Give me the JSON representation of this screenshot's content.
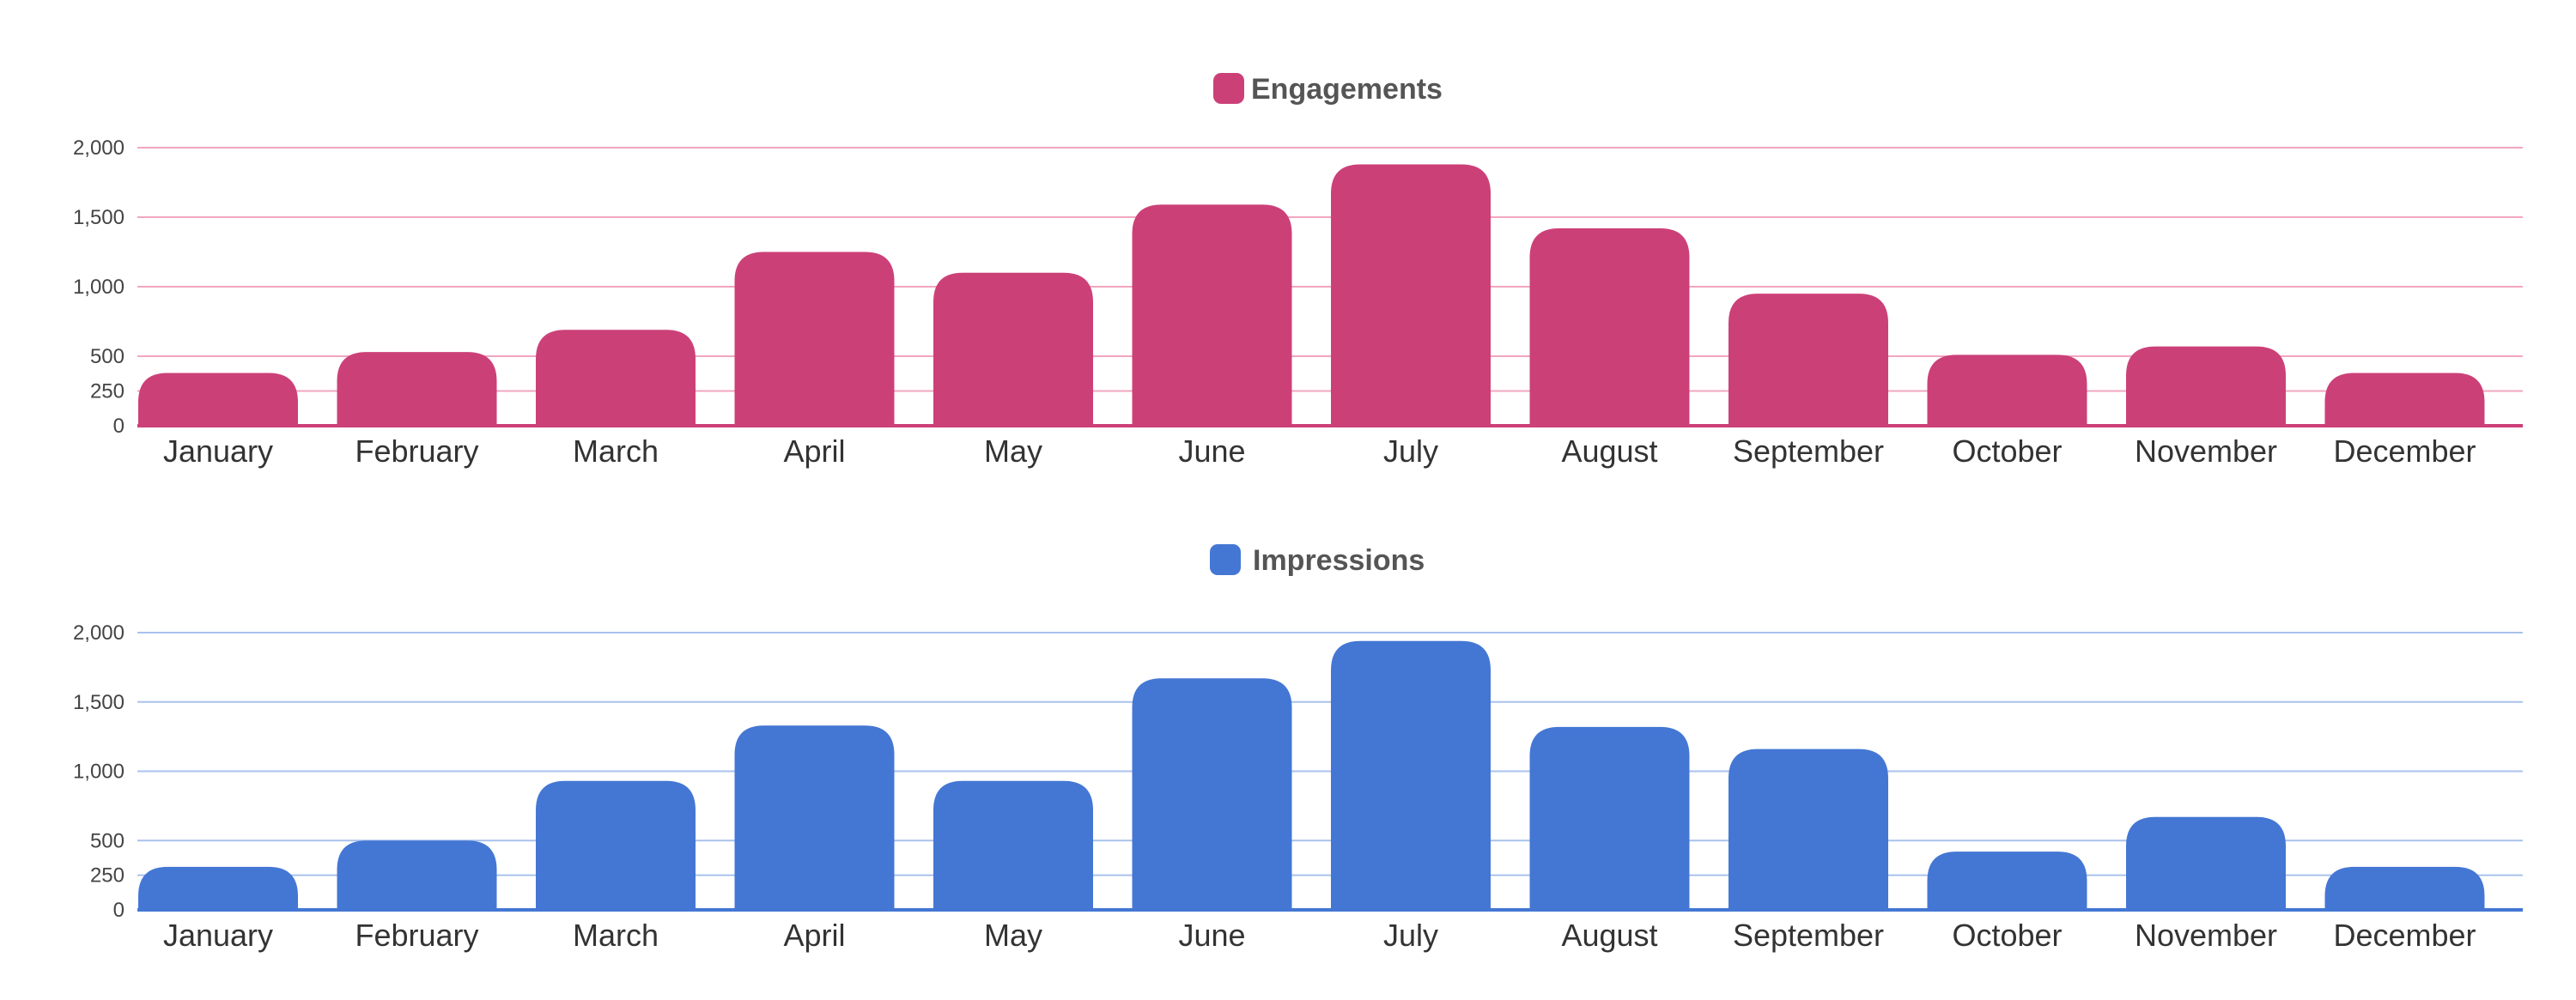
{
  "chart_data": [
    {
      "type": "bar",
      "legend": [
        "Engagements"
      ],
      "categories": [
        "January",
        "February",
        "March",
        "April",
        "May",
        "June",
        "July",
        "August",
        "September",
        "October",
        "November",
        "December"
      ],
      "series": [
        {
          "name": "Engagements",
          "color": "#cc4078",
          "values": [
            380,
            530,
            690,
            1250,
            1100,
            1590,
            1880,
            1420,
            950,
            510,
            570,
            380
          ]
        }
      ],
      "ylim": [
        0,
        2000
      ],
      "y_ticks": [
        0,
        250,
        500,
        1000,
        1500,
        2000
      ],
      "y_tick_labels": [
        "0",
        "250",
        "500",
        "1,000",
        "1,500",
        "2,000"
      ],
      "grid": true,
      "grid_color": "#f1a6bf",
      "legend_position": "top-center"
    },
    {
      "type": "bar",
      "legend": [
        "Impressions"
      ],
      "categories": [
        "January",
        "February",
        "March",
        "April",
        "May",
        "June",
        "July",
        "August",
        "September",
        "October",
        "November",
        "December"
      ],
      "series": [
        {
          "name": "Impressions",
          "color": "#4477d4",
          "values": [
            310,
            500,
            930,
            1330,
            930,
            1670,
            1940,
            1320,
            1160,
            420,
            670,
            310
          ]
        }
      ],
      "ylim": [
        0,
        2000
      ],
      "y_ticks": [
        0,
        250,
        500,
        1000,
        1500,
        2000
      ],
      "y_tick_labels": [
        "0",
        "250",
        "500",
        "1,000",
        "1,500",
        "2,000"
      ],
      "grid": true,
      "grid_color": "#a9c2ec",
      "legend_position": "top-center"
    }
  ]
}
